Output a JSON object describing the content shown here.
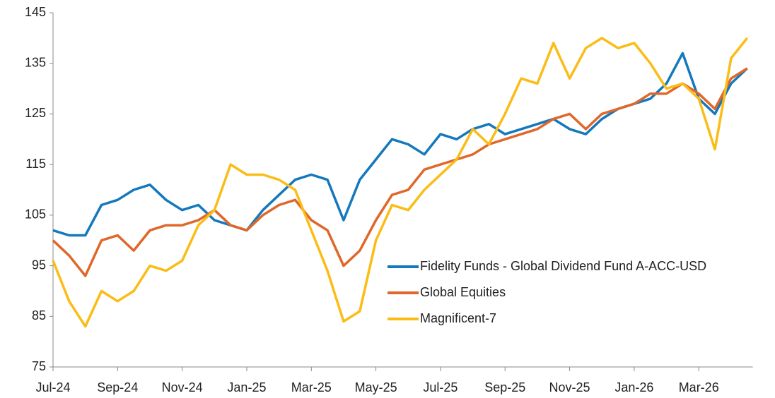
{
  "chart_data": {
    "type": "line",
    "categories": [
      "Jul-24",
      null,
      null,
      null,
      "Sep-24",
      null,
      null,
      null,
      "Nov-24",
      null,
      null,
      null,
      "Jan-25",
      null,
      null,
      null,
      "Mar-25",
      null,
      null,
      null,
      "May-25",
      null,
      null,
      null,
      "Jul-25",
      null,
      null,
      null,
      "Sep-25",
      null,
      null,
      null,
      "Nov-25",
      null,
      null,
      null,
      "Jan-26",
      null,
      null,
      null,
      "Mar-26",
      null,
      null,
      null
    ],
    "series": [
      {
        "name": "Fidelity Funds - Global Dividend Fund A-ACC-USD",
        "color": "#1478bd",
        "values": [
          102,
          101,
          101,
          107,
          108,
          110,
          111,
          108,
          106,
          107,
          104,
          103,
          102,
          106,
          109,
          112,
          113,
          112,
          104,
          112,
          116,
          120,
          119,
          117,
          121,
          120,
          122,
          123,
          121,
          122,
          123,
          124,
          122,
          121,
          124,
          126,
          127,
          128,
          131,
          137,
          128,
          125,
          131,
          134
        ]
      },
      {
        "name": "Global Equities",
        "color": "#e0672a",
        "values": [
          100,
          97,
          93,
          100,
          101,
          98,
          102,
          103,
          103,
          104,
          106,
          103,
          102,
          105,
          107,
          108,
          104,
          102,
          95,
          98,
          104,
          109,
          110,
          114,
          115,
          116,
          117,
          119,
          120,
          121,
          122,
          124,
          125,
          122,
          125,
          126,
          127,
          129,
          129,
          131,
          129,
          126,
          132,
          134
        ]
      },
      {
        "name": "Magnificent-7",
        "color": "#fbbc16",
        "values": [
          96,
          88,
          83,
          90,
          88,
          90,
          95,
          94,
          96,
          103,
          106,
          115,
          113,
          113,
          112,
          110,
          102,
          94,
          84,
          86,
          100,
          107,
          106,
          110,
          113,
          116,
          122,
          119,
          125,
          132,
          131,
          139,
          132,
          138,
          140,
          138,
          139,
          135,
          130,
          131,
          128,
          118,
          136,
          140
        ]
      }
    ],
    "ylim": [
      75,
      145
    ],
    "yticks": [
      75,
      85,
      95,
      105,
      115,
      125,
      135,
      145
    ],
    "grid": false,
    "legend": "lower right"
  }
}
